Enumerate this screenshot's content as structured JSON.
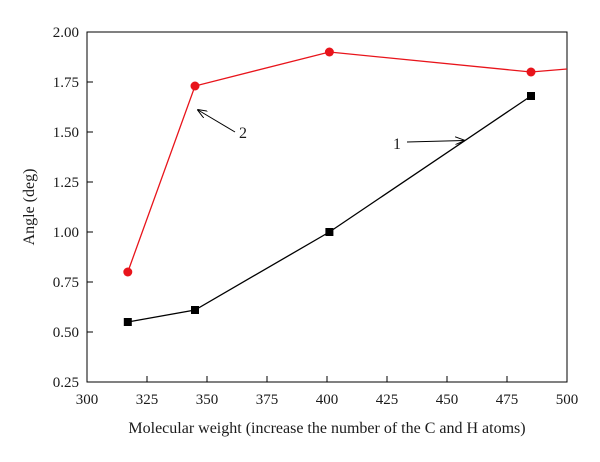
{
  "chart_data": {
    "type": "line",
    "xlabel": "Molecular weight (increase the number of the C and H atoms)",
    "ylabel": "Angle (deg)",
    "xlim": [
      300,
      500
    ],
    "ylim": [
      0.25,
      2.0
    ],
    "xticks": [
      "300",
      "325",
      "350",
      "375",
      "400",
      "425",
      "450",
      "475",
      "500"
    ],
    "yticks": [
      "0.25",
      "0.50",
      "0.75",
      "1.00",
      "1.25",
      "1.50",
      "1.75",
      "2.00"
    ],
    "grid": false,
    "series": [
      {
        "name": "1",
        "color": "#000000",
        "marker": "square",
        "x": [
          317,
          345,
          401,
          485
        ],
        "y": [
          0.55,
          0.61,
          1.0,
          1.68
        ]
      },
      {
        "name": "2",
        "color": "#e8141b",
        "marker": "circle",
        "x": [
          317,
          345,
          401,
          485,
          500
        ],
        "y": [
          0.8,
          1.73,
          1.9,
          1.8,
          1.815
        ],
        "marker_indices": [
          0,
          1,
          2,
          3
        ]
      }
    ],
    "annotations": [
      {
        "text": "1",
        "series": "1",
        "x": 445,
        "y": 1.46
      },
      {
        "text": "2",
        "series": "2",
        "x": 355,
        "y": 1.52
      }
    ]
  }
}
